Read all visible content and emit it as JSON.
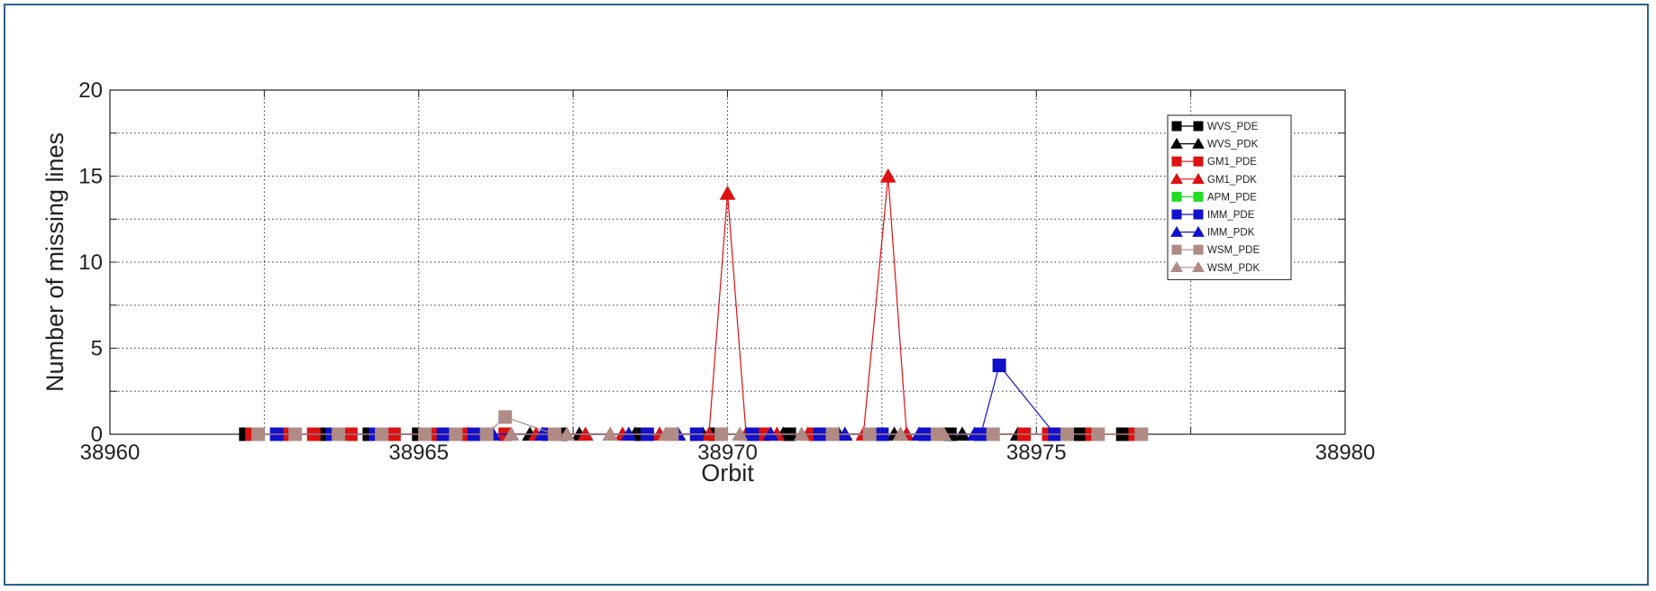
{
  "chart_data": {
    "type": "line",
    "title": "",
    "xlabel": "Orbit",
    "ylabel": "Number of missing lines",
    "xlim": [
      38960,
      38980
    ],
    "ylim": [
      0,
      20
    ],
    "xticks": [
      38960,
      38965,
      38970,
      38975,
      38980
    ],
    "yticks": [
      0,
      5,
      10,
      15,
      20
    ],
    "grid": true,
    "legend_position": "top-right",
    "series": [
      {
        "name": "WVS_PDE",
        "marker": "square",
        "color": "#000000",
        "x": [
          38962.2,
          38962.8,
          38963.5,
          38964.2,
          38965.0,
          38966.0,
          38967.3,
          38968.6,
          38969.8,
          38971.0,
          38972.4,
          38973.6,
          38974.8,
          38975.7,
          38976.4
        ],
        "values": [
          0,
          0,
          0,
          0,
          0,
          0,
          0,
          0,
          0,
          0,
          0,
          0,
          0,
          0,
          0
        ]
      },
      {
        "name": "WVS_PDK",
        "marker": "triangle",
        "color": "#000000",
        "x": [
          38966.8,
          38967.6,
          38968.5,
          38969.6,
          38970.9,
          38971.8,
          38972.7,
          38973.8,
          38974.7
        ],
        "values": [
          0,
          0,
          0,
          0,
          0,
          0,
          0,
          0,
          0
        ]
      },
      {
        "name": "GM1_PDE",
        "marker": "square",
        "color": "#dd1111",
        "x": [
          38962.3,
          38962.9,
          38963.3,
          38963.9,
          38964.6,
          38965.3,
          38965.7,
          38966.4,
          38970.6,
          38971.4,
          38974.8,
          38975.2,
          38975.9,
          38976.6
        ],
        "values": [
          0,
          0,
          0,
          0,
          0,
          0,
          0,
          0,
          0,
          0,
          0,
          0,
          0,
          0
        ]
      },
      {
        "name": "GM1_PDK",
        "marker": "triangle",
        "color": "#dd1111",
        "x": [
          38965.8,
          38966.9,
          38967.7,
          38968.3,
          38968.9,
          38969.7,
          38970.0,
          38970.3,
          38970.8,
          38971.3,
          38972.2,
          38972.6,
          38972.9
        ],
        "values": [
          0,
          0,
          0,
          0,
          0,
          0,
          14,
          0,
          0,
          0,
          0,
          15,
          0
        ]
      },
      {
        "name": "APM_PDE",
        "marker": "square",
        "color": "#22dd22",
        "x": [],
        "values": []
      },
      {
        "name": "IMM_PDE",
        "marker": "square",
        "color": "#1111cc",
        "x": [
          38962.7,
          38963.6,
          38964.3,
          38965.4,
          38965.9,
          38967.1,
          38968.7,
          38969.5,
          38970.4,
          38971.5,
          38972.5,
          38973.2,
          38974.1,
          38974.4,
          38975.3
        ],
        "values": [
          0,
          0,
          0,
          0,
          0,
          0,
          0,
          0,
          0,
          0,
          0,
          0,
          0,
          4,
          0
        ]
      },
      {
        "name": "IMM_PDK",
        "marker": "triangle",
        "color": "#1111cc",
        "x": [
          38966.2,
          38967.0,
          38968.4,
          38969.2,
          38970.7,
          38971.9,
          38973.1,
          38974.0
        ],
        "values": [
          0,
          0,
          0,
          0,
          0,
          0,
          0,
          0
        ]
      },
      {
        "name": "WSM_PDE",
        "marker": "square",
        "color": "#b08a84",
        "x": [
          38962.4,
          38963.0,
          38963.7,
          38964.4,
          38965.1,
          38965.6,
          38966.1,
          38966.4,
          38967.2,
          38969.1,
          38969.9,
          38971.7,
          38972.3,
          38973.4,
          38974.3,
          38975.5,
          38976.0,
          38976.7
        ],
        "values": [
          0,
          0,
          0,
          0,
          0,
          0,
          0,
          1,
          0,
          0,
          0,
          0,
          0,
          0,
          0,
          0,
          0,
          0
        ]
      },
      {
        "name": "WSM_PDK",
        "marker": "triangle",
        "color": "#b08a84",
        "x": [
          38966.5,
          38967.4,
          38968.1,
          38969.0,
          38970.2,
          38971.2,
          38972.8,
          38973.5
        ],
        "values": [
          0,
          0,
          0,
          0,
          0,
          0,
          0,
          0
        ]
      }
    ]
  }
}
